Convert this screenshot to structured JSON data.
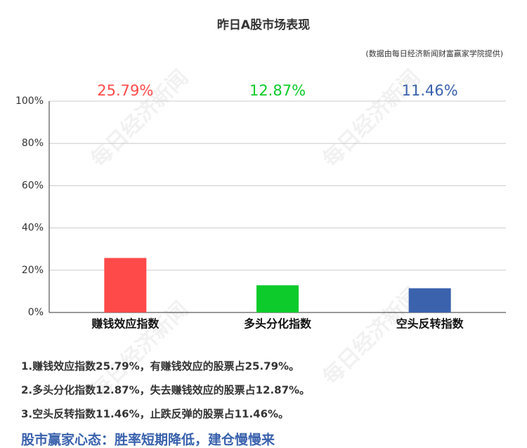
{
  "chart_data": {
    "type": "bar",
    "title": "昨日A股市场表现",
    "subtitle": "(数据由每日经济新闻财富赢家学院提供)",
    "categories": [
      "赚钱效应指数",
      "多头分化指数",
      "空头反转指数"
    ],
    "values": [
      25.79,
      12.87,
      11.46
    ],
    "value_labels": [
      "25.79%",
      "12.87%",
      "11.46%"
    ],
    "colors": [
      "#ff4a4a",
      "#0ccb2b",
      "#3a62ad"
    ],
    "ylim": [
      0,
      100
    ],
    "yticks": [
      {
        "value": 0,
        "label": "0%"
      },
      {
        "value": 20,
        "label": "20%"
      },
      {
        "value": 40,
        "label": "40%"
      },
      {
        "value": 60,
        "label": "60%"
      },
      {
        "value": 80,
        "label": "80%"
      },
      {
        "value": 100,
        "label": "100%"
      }
    ],
    "grid": true
  },
  "notes": [
    "1.赚钱效应指数25.79%，有赚钱效应的股票占25.79%。",
    "2.多头分化指数12.87%，失去赚钱效应的股票占12.87%。",
    "3.空头反转指数11.46%，止跌反弹的股票占11.46%。"
  ],
  "footer": "股市赢家心态：胜率短期降低，建仓慢慢来",
  "watermark": "每日经济新闻"
}
